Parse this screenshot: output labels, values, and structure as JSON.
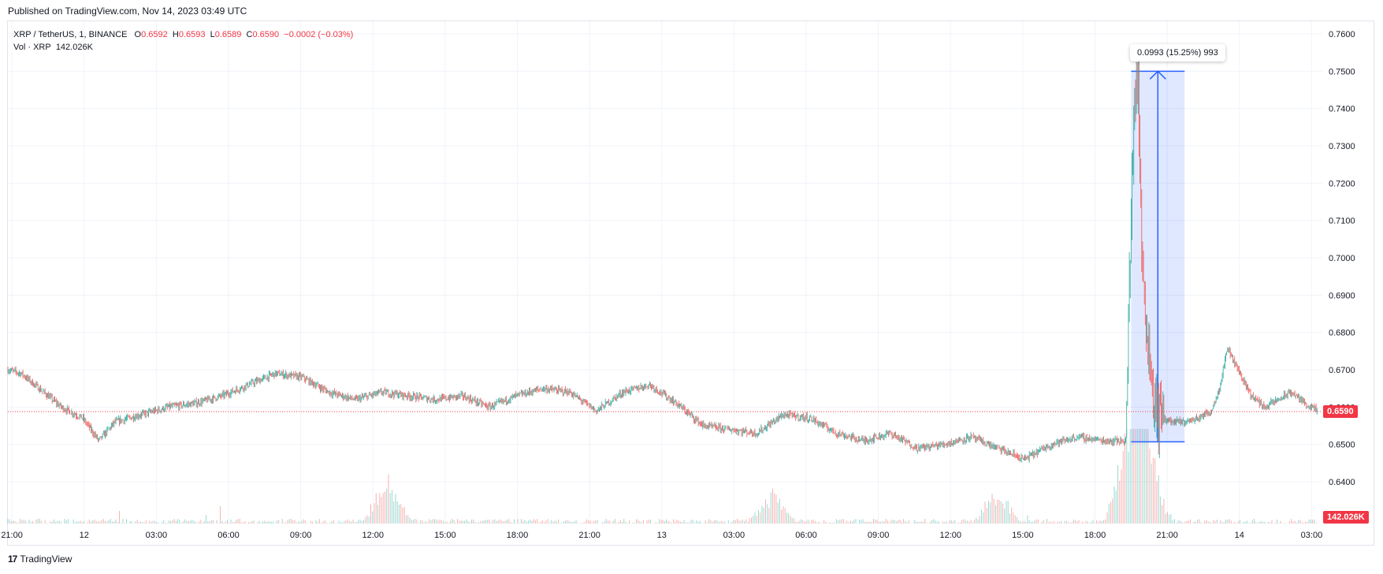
{
  "header": {
    "published": "Published on TradingView.com, Nov 14, 2023 03:49 UTC"
  },
  "legend": {
    "symbol": "XRP / TetherUS, 1, BINANCE",
    "o_label": "O",
    "o_value": "0.6592",
    "h_label": "H",
    "h_value": "0.6593",
    "l_label": "L",
    "l_value": "0.6589",
    "c_label": "C",
    "c_value": "0.6590",
    "change": "−0.0002 (−0.03%)",
    "vol_label": "Vol · XRP",
    "vol_value": "142.026K"
  },
  "measure": {
    "label": "0.0993 (15.25%) 993"
  },
  "badges": {
    "price": "0.6590",
    "volume": "142.026K"
  },
  "footer": {
    "brand": "TradingView",
    "logo_icon": "tradingview-logo-icon"
  },
  "colors": {
    "up": "#26a69a",
    "down": "#ef5350",
    "accent": "#2962ff",
    "last": "#f23645"
  },
  "chart_data": {
    "type": "candlestick",
    "series_name": "XRP / TetherUS",
    "interval": "1",
    "ylim": [
      0.6355,
      0.7645
    ],
    "y_ticks": [
      "0.6400",
      "0.6500",
      "0.6600",
      "0.6700",
      "0.6800",
      "0.6900",
      "0.7000",
      "0.7100",
      "0.7200",
      "0.7300",
      "0.7400",
      "0.7500",
      "0.7600"
    ],
    "x_ticks": [
      "21:00",
      "12",
      "03:00",
      "06:00",
      "09:00",
      "12:00",
      "15:00",
      "18:00",
      "21:00",
      "13",
      "03:00",
      "06:00",
      "09:00",
      "12:00",
      "15:00",
      "18:00",
      "21:00",
      "14",
      "03:00"
    ],
    "last_price": 0.659,
    "grid": true,
    "price_path": [
      [
        0.0,
        0.67
      ],
      [
        0.5,
        0.669
      ],
      [
        1.0,
        0.666
      ],
      [
        1.5,
        0.663
      ],
      [
        2.0,
        0.66
      ],
      [
        2.8,
        0.657
      ],
      [
        3.4,
        0.651
      ],
      [
        4.0,
        0.656
      ],
      [
        5.0,
        0.658
      ],
      [
        6.0,
        0.66
      ],
      [
        7.0,
        0.661
      ],
      [
        8.0,
        0.663
      ],
      [
        9.0,
        0.666
      ],
      [
        10.0,
        0.669
      ],
      [
        11.0,
        0.668
      ],
      [
        12.0,
        0.664
      ],
      [
        13.0,
        0.662
      ],
      [
        14.0,
        0.664
      ],
      [
        15.0,
        0.663
      ],
      [
        16.0,
        0.662
      ],
      [
        17.0,
        0.663
      ],
      [
        18.0,
        0.66
      ],
      [
        19.0,
        0.663
      ],
      [
        20.0,
        0.665
      ],
      [
        21.0,
        0.664
      ],
      [
        22.0,
        0.659
      ],
      [
        23.0,
        0.664
      ],
      [
        24.0,
        0.666
      ],
      [
        25.0,
        0.661
      ],
      [
        26.0,
        0.655
      ],
      [
        27.0,
        0.654
      ],
      [
        28.0,
        0.653
      ],
      [
        29.0,
        0.658
      ],
      [
        30.0,
        0.657
      ],
      [
        31.0,
        0.653
      ],
      [
        32.0,
        0.651
      ],
      [
        33.0,
        0.653
      ],
      [
        34.0,
        0.649
      ],
      [
        35.0,
        0.65
      ],
      [
        36.0,
        0.652
      ],
      [
        37.0,
        0.649
      ],
      [
        38.0,
        0.646
      ],
      [
        39.0,
        0.65
      ],
      [
        40.0,
        0.652
      ],
      [
        41.0,
        0.651
      ],
      [
        41.8,
        0.651
      ],
      [
        42.0,
        0.71
      ],
      [
        42.1,
        0.74
      ],
      [
        42.25,
        0.75
      ],
      [
        42.4,
        0.7
      ],
      [
        42.6,
        0.68
      ],
      [
        42.8,
        0.665
      ],
      [
        43.0,
        0.658
      ],
      [
        43.5,
        0.656
      ],
      [
        44.0,
        0.656
      ],
      [
        44.5,
        0.657
      ],
      [
        45.0,
        0.659
      ],
      [
        45.3,
        0.665
      ],
      [
        45.6,
        0.676
      ],
      [
        46.0,
        0.67
      ],
      [
        46.5,
        0.663
      ],
      [
        47.0,
        0.66
      ],
      [
        47.5,
        0.662
      ],
      [
        48.0,
        0.664
      ],
      [
        48.5,
        0.661
      ],
      [
        48.95,
        0.659
      ]
    ],
    "volume_spikes": [
      {
        "t": 14.2,
        "v": 0.6
      },
      {
        "t": 28.6,
        "v": 0.35
      },
      {
        "t": 37.0,
        "v": 0.4
      },
      {
        "t": 41.9,
        "v": 1.0
      },
      {
        "t": 42.3,
        "v": 0.9
      },
      {
        "t": 42.7,
        "v": 0.55
      }
    ],
    "volume_max": "142.026K",
    "measure_range": {
      "t_start": 42.0,
      "t_end": 44.0,
      "p_low": 0.6507,
      "p_high": 0.75
    }
  }
}
